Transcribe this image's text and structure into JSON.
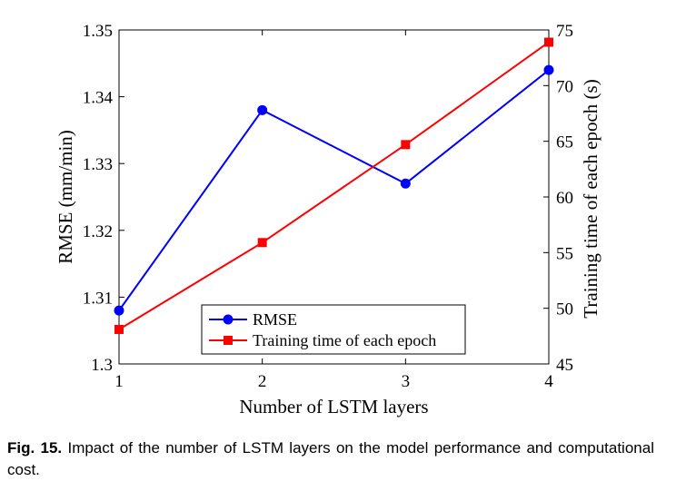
{
  "chart_data": {
    "type": "line",
    "xlabel": "Number of LSTM layers",
    "ylabel_left": "RMSE (mm/min)",
    "ylabel_right": "Training time of each epoch (s)",
    "x": [
      1,
      2,
      3,
      4
    ],
    "xlim": [
      1,
      4
    ],
    "x_ticks": [
      "1",
      "2",
      "3",
      "4"
    ],
    "ylim_left": [
      1.3,
      1.35
    ],
    "y_ticks_left": [
      "1.3",
      "1.31",
      "1.32",
      "1.33",
      "1.34",
      "1.35"
    ],
    "ylim_right": [
      45,
      75
    ],
    "y_ticks_right": [
      "45",
      "50",
      "55",
      "60",
      "65",
      "70",
      "75"
    ],
    "grid": false,
    "legend_position": "bottom-right",
    "series": [
      {
        "name": "RMSE",
        "axis": "left",
        "color": "#0000ff",
        "marker": "circle",
        "values": [
          1.308,
          1.338,
          1.327,
          1.344
        ]
      },
      {
        "name": "Training time of each epoch",
        "axis": "right",
        "color": "#ff0000",
        "marker": "square",
        "values": [
          48.1,
          55.9,
          64.7,
          73.9
        ]
      }
    ]
  },
  "caption": {
    "label": "Fig. 15.",
    "text": "Impact of the number of LSTM layers on the model performance and computational cost."
  }
}
